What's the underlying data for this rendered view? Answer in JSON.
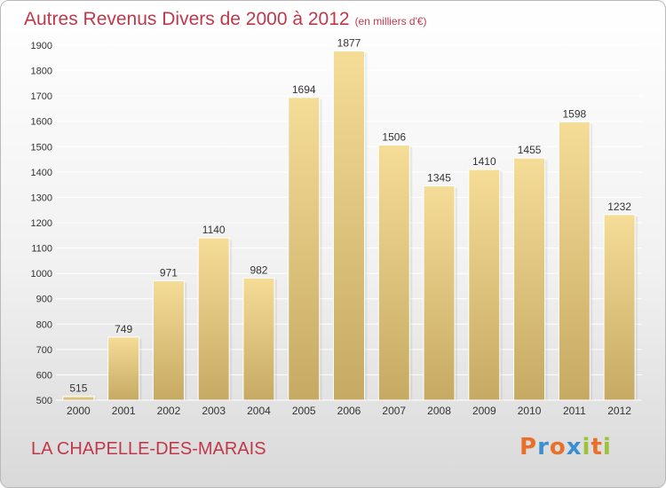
{
  "chart_data": {
    "type": "bar",
    "title": "Autres Revenus Divers de 2000 à 2012",
    "subtitle": "(en milliers d'€)",
    "categories": [
      "2000",
      "2001",
      "2002",
      "2003",
      "2004",
      "2005",
      "2006",
      "2007",
      "2008",
      "2009",
      "2010",
      "2011",
      "2012"
    ],
    "values": [
      515,
      749,
      971,
      1140,
      982,
      1694,
      1877,
      1506,
      1345,
      1410,
      1455,
      1598,
      1232
    ],
    "ylim": [
      500,
      1900
    ],
    "yticks": [
      500,
      600,
      700,
      800,
      900,
      1000,
      1100,
      1200,
      1300,
      1400,
      1500,
      1600,
      1700,
      1800,
      1900
    ],
    "grid": true,
    "xlabel": "",
    "ylabel": ""
  },
  "footer": {
    "commune": "LA CHAPELLE-DES-MARAIS",
    "logo_letters": [
      "P",
      "r",
      "o",
      "x",
      "i",
      "t",
      "i"
    ]
  },
  "colors": {
    "title": "#c0394b",
    "bar_top": "#f5dc97",
    "bar_bottom": "#c6aa63",
    "logo": [
      "#e8702a",
      "#3a8fd0",
      "#e8702a",
      "#3a8fd0",
      "#9bc33a",
      "#e8702a",
      "#9bc33a"
    ]
  }
}
